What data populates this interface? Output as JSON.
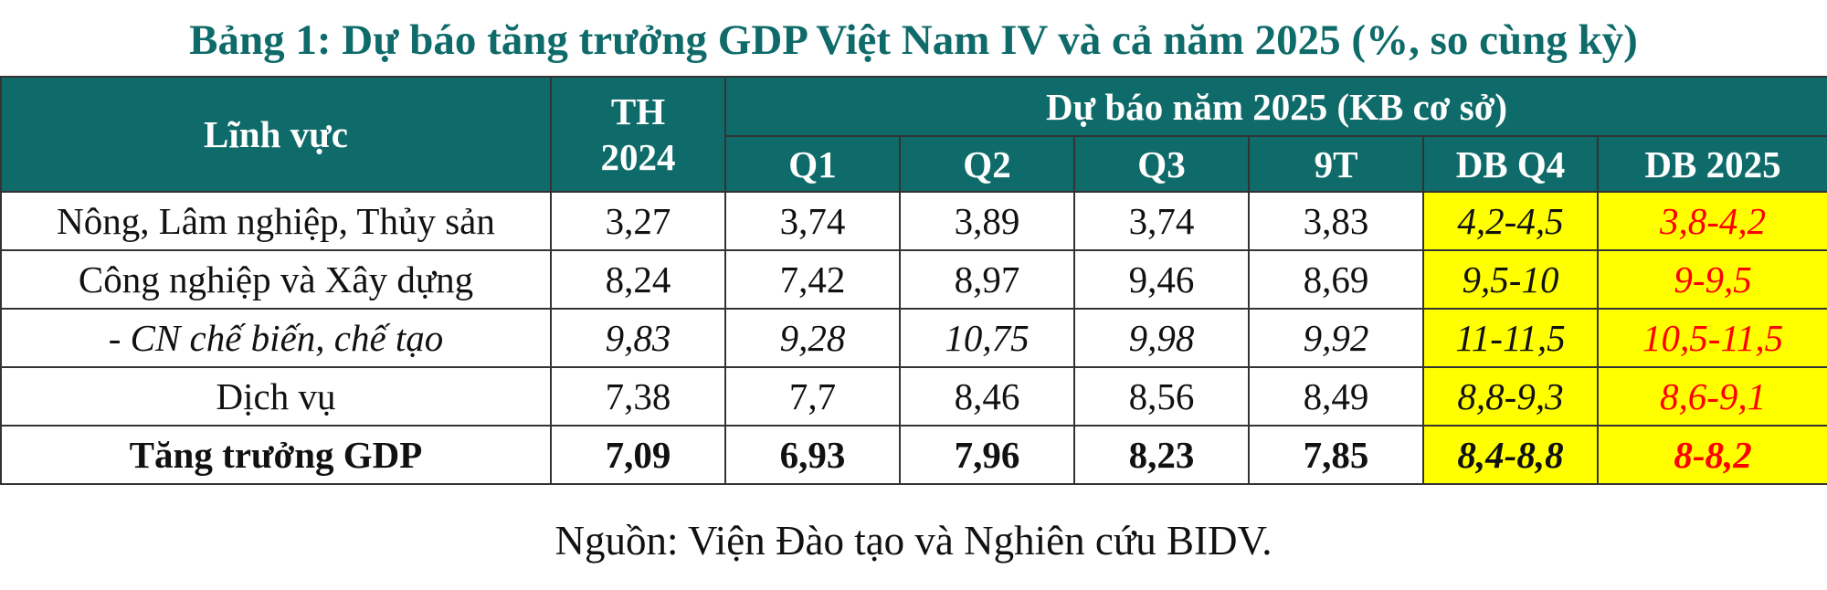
{
  "title": "Bảng 1: Dự báo tăng trưởng GDP Việt Nam IV và cả năm 2025 (%, so cùng kỳ)",
  "table": {
    "header": {
      "field": "Lĩnh vực",
      "th_2024": "TH\n2024",
      "forecast_group": "Dự báo năm 2025 (KB cơ sở)",
      "columns": [
        "Q1",
        "Q2",
        "Q3",
        "9T",
        "DB Q4",
        "DB 2025"
      ]
    },
    "rows": [
      {
        "field": "Nông, Lâm nghiệp, Thủy sản",
        "th_2024": "3,27",
        "q1": "3,74",
        "q2": "3,89",
        "q3": "3,74",
        "t9": "3,83",
        "db_q4": "4,2-4,5",
        "db_2025": "3,8-4,2",
        "style": "normal"
      },
      {
        "field": "Công nghiệp và Xây dựng",
        "th_2024": "8,24",
        "q1": "7,42",
        "q2": "8,97",
        "q3": "9,46",
        "t9": "8,69",
        "db_q4": "9,5-10",
        "db_2025": "9-9,5",
        "style": "normal"
      },
      {
        "field": "- CN chế biến, chế tạo",
        "th_2024": "9,83",
        "q1": "9,28",
        "q2": "10,75",
        "q3": "9,98",
        "t9": "9,92",
        "db_q4": "11-11,5",
        "db_2025": "10,5-11,5",
        "style": "italic"
      },
      {
        "field": "Dịch vụ",
        "th_2024": "7,38",
        "q1": "7,7",
        "q2": "8,46",
        "q3": "8,56",
        "t9": "8,49",
        "db_q4": "8,8-9,3",
        "db_2025": "8,6-9,1",
        "style": "normal"
      },
      {
        "field": "Tăng trưởng GDP",
        "th_2024": "7,09",
        "q1": "6,93",
        "q2": "7,96",
        "q3": "8,23",
        "t9": "7,85",
        "db_q4": "8,4-8,8",
        "db_2025": "8-8,2",
        "style": "bold"
      }
    ]
  },
  "source": "Nguồn: Viện Đào tạo và Nghiên cứu BIDV.",
  "colors": {
    "header_bg": "#0f6b6a",
    "title_color": "#0f6b6a",
    "highlight_bg": "#ffff00",
    "forecast_2025_text": "#ff0000"
  }
}
